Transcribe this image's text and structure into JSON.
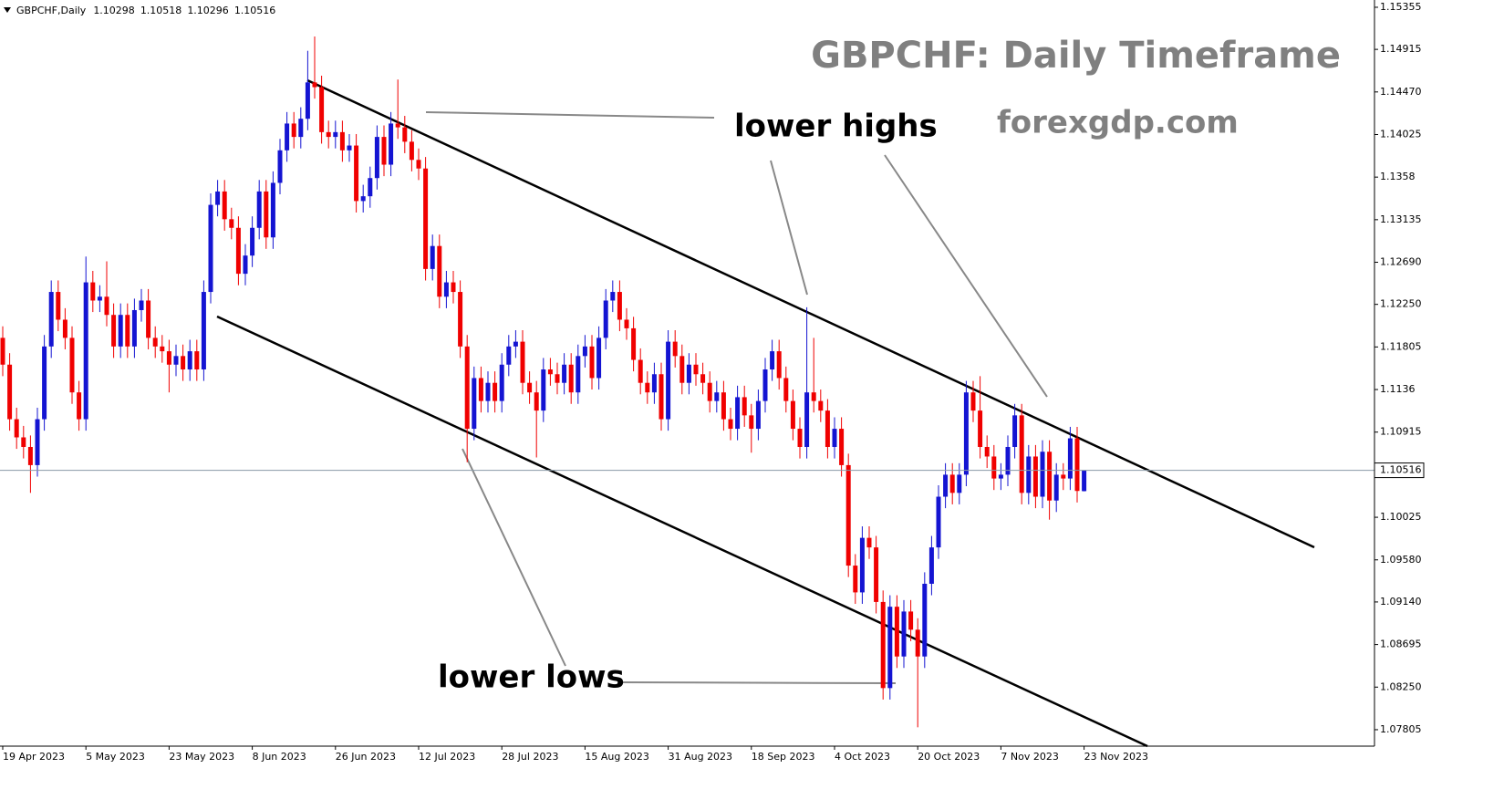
{
  "chart_data": {
    "type": "candlestick",
    "symbol": "GBPCHF,Daily",
    "title": "GBPCHF: Daily Timeframe",
    "watermark": "forexgdp.com",
    "annotations": [
      "lower highs",
      "lower lows"
    ],
    "up_color": "#1414d2",
    "down_color": "#f00000",
    "grid": false,
    "categories": [
      "19 Apr 2023",
      null,
      null,
      null,
      null,
      null,
      null,
      null,
      null,
      null,
      null,
      null,
      "5 May 2023",
      null,
      null,
      null,
      null,
      null,
      null,
      null,
      null,
      null,
      null,
      null,
      "23 May 2023",
      null,
      null,
      null,
      null,
      null,
      null,
      null,
      null,
      null,
      null,
      null,
      "8 Jun 2023",
      null,
      null,
      null,
      null,
      null,
      null,
      null,
      null,
      null,
      null,
      null,
      "26 Jun 2023",
      null,
      null,
      null,
      null,
      null,
      null,
      null,
      null,
      null,
      null,
      null,
      "12 Jul 2023",
      null,
      null,
      null,
      null,
      null,
      null,
      null,
      null,
      null,
      null,
      null,
      "28 Jul 2023",
      null,
      null,
      null,
      null,
      null,
      null,
      null,
      null,
      null,
      null,
      null,
      "15 Aug 2023",
      null,
      null,
      null,
      null,
      null,
      null,
      null,
      null,
      null,
      null,
      null,
      "31 Aug 2023",
      null,
      null,
      null,
      null,
      null,
      null,
      null,
      null,
      null,
      null,
      null,
      "18 Sep 2023",
      null,
      null,
      null,
      null,
      null,
      null,
      null,
      null,
      null,
      null,
      null,
      "4 Oct 2023",
      null,
      null,
      null,
      null,
      null,
      null,
      null,
      null,
      null,
      null,
      null,
      "20 Oct 2023",
      null,
      null,
      null,
      null,
      null,
      null,
      null,
      null,
      null,
      null,
      null,
      "7 Nov 2023",
      null,
      null,
      null,
      null,
      null,
      null,
      null,
      null,
      null,
      null,
      null,
      "23 Nov 2023"
    ],
    "open": [
      1.119,
      1.1162,
      1.1105,
      1.1086,
      1.1076,
      1.1057,
      1.1105,
      1.1181,
      1.1238,
      1.1209,
      1.119,
      1.1133,
      1.1105,
      1.1248,
      1.1229,
      1.1233,
      1.1214,
      1.1181,
      1.1214,
      1.1181,
      1.1219,
      1.1229,
      1.119,
      1.1181,
      1.1176,
      1.1162,
      1.1171,
      1.1157,
      1.1176,
      1.1157,
      1.1238,
      1.1329,
      1.1343,
      1.1314,
      1.1305,
      1.1257,
      1.1276,
      1.1305,
      1.1343,
      1.1295,
      1.1352,
      1.1386,
      1.1414,
      1.14,
      1.1419,
      1.1457,
      1.1452,
      1.1405,
      1.14,
      1.1405,
      1.1386,
      1.1391,
      1.1333,
      1.1338,
      1.1357,
      1.14,
      1.1371,
      1.1414,
      1.141,
      1.1395,
      1.1376,
      1.1367,
      1.1262,
      1.1286,
      1.1233,
      1.1248,
      1.1238,
      1.1181,
      1.1095,
      1.1148,
      1.1124,
      1.1143,
      1.1124,
      1.1162,
      1.1181,
      1.1186,
      1.1143,
      1.1133,
      1.1114,
      1.1157,
      1.1152,
      1.1143,
      1.1162,
      1.1133,
      1.1171,
      1.1181,
      1.1148,
      1.119,
      1.1229,
      1.1238,
      1.1209,
      1.12,
      1.1167,
      1.1143,
      1.1133,
      1.1152,
      1.1105,
      1.1186,
      1.1171,
      1.1143,
      1.1162,
      1.1152,
      1.1143,
      1.1124,
      1.1133,
      1.1105,
      1.1095,
      1.1128,
      1.1109,
      1.1095,
      1.1124,
      1.1157,
      1.1176,
      1.1148,
      1.1124,
      1.1095,
      1.1076,
      1.1133,
      1.1124,
      1.1114,
      1.1076,
      1.1095,
      1.1057,
      1.0952,
      1.0924,
      1.0981,
      1.0971,
      1.0914,
      1.0824,
      1.0909,
      1.0857,
      1.0904,
      1.0885,
      1.0857,
      1.0933,
      1.0971,
      1.1024,
      1.1047,
      1.1028,
      1.1047,
      1.1133,
      1.1114,
      1.1076,
      1.1066,
      1.1043,
      1.1047,
      1.1076,
      1.1109,
      1.1028,
      1.1066,
      1.1024,
      1.1071,
      1.102,
      1.1047,
      1.1043,
      1.1085,
      1.10298
    ],
    "high": [
      1.1202,
      1.1174,
      1.1117,
      1.1098,
      1.1088,
      1.1117,
      1.1193,
      1.125,
      1.125,
      1.1221,
      1.1202,
      1.1145,
      1.1275,
      1.126,
      1.1245,
      1.127,
      1.1226,
      1.1226,
      1.1226,
      1.1231,
      1.1241,
      1.1241,
      1.1202,
      1.1193,
      1.1188,
      1.1183,
      1.1183,
      1.1188,
      1.1188,
      1.125,
      1.1341,
      1.1355,
      1.1355,
      1.1326,
      1.1317,
      1.1288,
      1.1317,
      1.1355,
      1.1355,
      1.1364,
      1.1398,
      1.1426,
      1.1426,
      1.1431,
      1.149,
      1.1505,
      1.1464,
      1.1417,
      1.1417,
      1.1417,
      1.1403,
      1.1403,
      1.135,
      1.1369,
      1.1412,
      1.1412,
      1.1426,
      1.146,
      1.1422,
      1.1407,
      1.1388,
      1.1379,
      1.1298,
      1.1298,
      1.126,
      1.126,
      1.125,
      1.1193,
      1.116,
      1.116,
      1.1155,
      1.1155,
      1.1174,
      1.1193,
      1.1198,
      1.1198,
      1.1155,
      1.1145,
      1.1169,
      1.1169,
      1.1164,
      1.1174,
      1.1174,
      1.1183,
      1.1193,
      1.1193,
      1.1202,
      1.1241,
      1.125,
      1.125,
      1.1221,
      1.1212,
      1.1179,
      1.1155,
      1.1164,
      1.1164,
      1.1198,
      1.1198,
      1.1183,
      1.1174,
      1.1174,
      1.1164,
      1.1155,
      1.1145,
      1.1145,
      1.1117,
      1.114,
      1.114,
      1.1121,
      1.1136,
      1.1169,
      1.1188,
      1.1188,
      1.116,
      1.1136,
      1.1107,
      1.1222,
      1.119,
      1.1136,
      1.1126,
      1.1107,
      1.1107,
      1.1069,
      1.0964,
      1.0993,
      1.0993,
      1.0983,
      1.0926,
      1.0921,
      1.0921,
      1.0916,
      1.0916,
      1.0897,
      1.0945,
      1.0983,
      1.1036,
      1.1059,
      1.1059,
      1.1059,
      1.1145,
      1.1145,
      1.115,
      1.1088,
      1.1078,
      1.1059,
      1.1088,
      1.1121,
      1.1121,
      1.1078,
      1.1078,
      1.1083,
      1.1083,
      1.1059,
      1.1059,
      1.1097,
      1.1097,
      1.10518
    ],
    "low": [
      1.115,
      1.1093,
      1.1074,
      1.1064,
      1.1028,
      1.1045,
      1.1093,
      1.1169,
      1.1197,
      1.1178,
      1.1121,
      1.1093,
      1.1093,
      1.1217,
      1.1217,
      1.1202,
      1.1169,
      1.1169,
      1.1169,
      1.1169,
      1.1207,
      1.1178,
      1.1169,
      1.1164,
      1.1133,
      1.115,
      1.1145,
      1.1145,
      1.1145,
      1.1145,
      1.1226,
      1.1317,
      1.1302,
      1.1293,
      1.1245,
      1.1245,
      1.1264,
      1.1293,
      1.1283,
      1.1283,
      1.134,
      1.1374,
      1.1388,
      1.1388,
      1.1407,
      1.144,
      1.1393,
      1.1388,
      1.1388,
      1.1374,
      1.1374,
      1.1321,
      1.1321,
      1.1326,
      1.1345,
      1.1359,
      1.1359,
      1.1398,
      1.1383,
      1.1364,
      1.1355,
      1.125,
      1.125,
      1.1221,
      1.1221,
      1.1226,
      1.1169,
      1.106,
      1.1083,
      1.1112,
      1.1112,
      1.1112,
      1.1112,
      1.115,
      1.1169,
      1.1131,
      1.1121,
      1.1065,
      1.1102,
      1.114,
      1.1131,
      1.1131,
      1.1121,
      1.1121,
      1.1159,
      1.1136,
      1.1136,
      1.1178,
      1.1217,
      1.1197,
      1.1188,
      1.1155,
      1.1131,
      1.1121,
      1.1121,
      1.1093,
      1.1093,
      1.1159,
      1.1131,
      1.1131,
      1.114,
      1.1131,
      1.1112,
      1.1112,
      1.1093,
      1.1083,
      1.1083,
      1.1097,
      1.107,
      1.1083,
      1.1112,
      1.1145,
      1.1136,
      1.1112,
      1.1083,
      1.1064,
      1.1064,
      1.1112,
      1.1102,
      1.1064,
      1.1064,
      1.1045,
      1.094,
      1.0912,
      1.0912,
      1.0959,
      1.0902,
      1.0812,
      1.0812,
      1.0845,
      1.0845,
      1.0873,
      1.0783,
      1.0845,
      1.0921,
      1.0959,
      1.1012,
      1.1016,
      1.1016,
      1.1035,
      1.1102,
      1.1064,
      1.1054,
      1.1031,
      1.1031,
      1.1035,
      1.1064,
      1.1016,
      1.1016,
      1.1012,
      1.1012,
      1.1,
      1.1008,
      1.1031,
      1.1031,
      1.1018,
      1.10296
    ],
    "close": [
      1.1162,
      1.1105,
      1.1086,
      1.1076,
      1.1057,
      1.1105,
      1.1181,
      1.1238,
      1.1209,
      1.119,
      1.1133,
      1.1105,
      1.1248,
      1.1229,
      1.1233,
      1.1214,
      1.1181,
      1.1214,
      1.1181,
      1.1219,
      1.1229,
      1.119,
      1.1181,
      1.1176,
      1.1162,
      1.1171,
      1.1157,
      1.1176,
      1.1157,
      1.1238,
      1.1329,
      1.1343,
      1.1314,
      1.1305,
      1.1257,
      1.1276,
      1.1305,
      1.1343,
      1.1295,
      1.1352,
      1.1386,
      1.1414,
      1.14,
      1.1419,
      1.1457,
      1.1452,
      1.1405,
      1.14,
      1.1405,
      1.1386,
      1.1391,
      1.1333,
      1.1338,
      1.1357,
      1.14,
      1.1371,
      1.1414,
      1.141,
      1.1395,
      1.1376,
      1.1367,
      1.1262,
      1.1286,
      1.1233,
      1.1248,
      1.1238,
      1.1181,
      1.1095,
      1.1148,
      1.1124,
      1.1143,
      1.1124,
      1.1162,
      1.1181,
      1.1186,
      1.1143,
      1.1133,
      1.1114,
      1.1157,
      1.1152,
      1.1143,
      1.1162,
      1.1133,
      1.1171,
      1.1181,
      1.1148,
      1.119,
      1.1229,
      1.1238,
      1.1209,
      1.12,
      1.1167,
      1.1143,
      1.1133,
      1.1152,
      1.1105,
      1.1186,
      1.1171,
      1.1143,
      1.1162,
      1.1152,
      1.1143,
      1.1124,
      1.1133,
      1.1105,
      1.1095,
      1.1128,
      1.1109,
      1.1095,
      1.1124,
      1.1157,
      1.1176,
      1.1148,
      1.1124,
      1.1095,
      1.1076,
      1.1133,
      1.1124,
      1.1114,
      1.1076,
      1.1095,
      1.1057,
      1.0952,
      1.0924,
      1.0981,
      1.0971,
      1.0914,
      1.0824,
      1.0909,
      1.0857,
      1.0904,
      1.0885,
      1.0857,
      1.0933,
      1.0971,
      1.1024,
      1.1047,
      1.1028,
      1.1047,
      1.1133,
      1.1114,
      1.1076,
      1.1066,
      1.1043,
      1.1047,
      1.1076,
      1.1109,
      1.1028,
      1.1066,
      1.1024,
      1.1071,
      1.102,
      1.1047,
      1.1043,
      1.1085,
      1.103,
      1.10516
    ],
    "ylim": [
      1.07633,
      1.15431
    ],
    "yticks": [
      1.15355,
      1.14915,
      {
        "value": 1.1447,
        "label": "1.14470"
      },
      1.14025,
      1.1358,
      1.13135,
      {
        "value": 1.1269,
        "label": "1.12690"
      },
      {
        "value": 1.1225,
        "label": "1.12250"
      },
      1.11805,
      1.1136,
      1.10915,
      1.10025,
      {
        "value": 1.0958,
        "label": "1.09580"
      },
      {
        "value": 1.0914,
        "label": "1.09140"
      },
      1.08695,
      {
        "value": 1.0825,
        "label": "1.08250"
      },
      1.07805
    ]
  }
}
